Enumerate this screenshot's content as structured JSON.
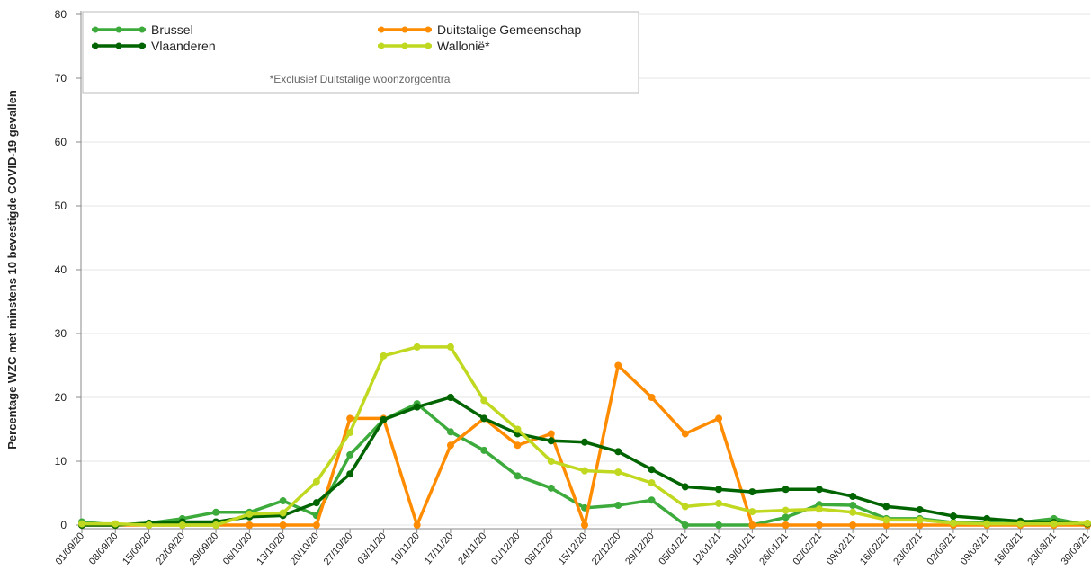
{
  "chart_data": {
    "type": "line",
    "y_label": "Percentage WZC met minstens 10 bevestigde COVID-19 gevallen",
    "note": "*Exclusief Duitstalige woonzorgcentra",
    "categories": [
      "01/09/20",
      "08/09/20",
      "15/09/20",
      "22/09/20",
      "29/09/20",
      "06/10/20",
      "13/10/20",
      "20/10/20",
      "27/10/20",
      "03/11/20",
      "10/11/20",
      "17/11/20",
      "24/11/20",
      "01/12/20",
      "08/12/20",
      "15/12/20",
      "22/12/20",
      "29/12/20",
      "05/01/21",
      "12/01/21",
      "19/01/21",
      "26/01/21",
      "02/02/21",
      "09/02/21",
      "16/02/21",
      "23/02/21",
      "02/03/21",
      "09/03/21",
      "16/03/21",
      "23/03/21",
      "30/03/21"
    ],
    "series": [
      {
        "name": "Brussel",
        "color": "#3cab3c",
        "values": [
          0.5,
          0,
          0.3,
          1,
          2,
          2,
          3.8,
          1.5,
          11,
          16.5,
          19,
          14.6,
          11.7,
          7.7,
          5.8,
          2.7,
          3.1,
          3.9,
          0,
          0,
          0,
          1.2,
          3.2,
          3.1,
          1,
          1,
          0.4,
          0.4,
          0.4,
          1,
          0
        ]
      },
      {
        "name": "Duitstalige Gemeenschap",
        "color": "#ff8c00",
        "values": [
          0,
          0,
          0,
          0,
          0,
          0,
          0,
          0,
          16.7,
          16.7,
          0,
          12.5,
          16.7,
          12.5,
          14.3,
          0,
          25,
          20,
          14.3,
          16.7,
          0,
          0,
          0,
          0,
          0,
          0,
          0,
          0,
          0,
          0,
          0
        ]
      },
      {
        "name": "Vlaanderen",
        "color": "#006400",
        "values": [
          0,
          0,
          0.3,
          0.5,
          0.5,
          1.3,
          1.5,
          3.5,
          8,
          16.5,
          18.5,
          20,
          16.7,
          14.3,
          13.2,
          13,
          11.5,
          8.7,
          6,
          5.6,
          5.2,
          5.6,
          5.6,
          4.5,
          2.9,
          2.4,
          1.4,
          1,
          0.6,
          0.4,
          0.2
        ]
      },
      {
        "name": "Wallonië*",
        "color": "#c0d820",
        "values": [
          0.2,
          0.2,
          0,
          0,
          0,
          1.7,
          1.9,
          6.8,
          14.5,
          26.5,
          27.9,
          27.9,
          19.5,
          15,
          10,
          8.5,
          8.3,
          6.6,
          2.9,
          3.4,
          2.1,
          2.3,
          2.5,
          2,
          0.8,
          0.8,
          0.3,
          0.2,
          0.2,
          0.2,
          0.3
        ]
      }
    ],
    "ylim": [
      0,
      80
    ],
    "yticks": [
      0,
      10,
      20,
      30,
      40,
      50,
      60,
      70,
      80
    ],
    "grid": true
  }
}
